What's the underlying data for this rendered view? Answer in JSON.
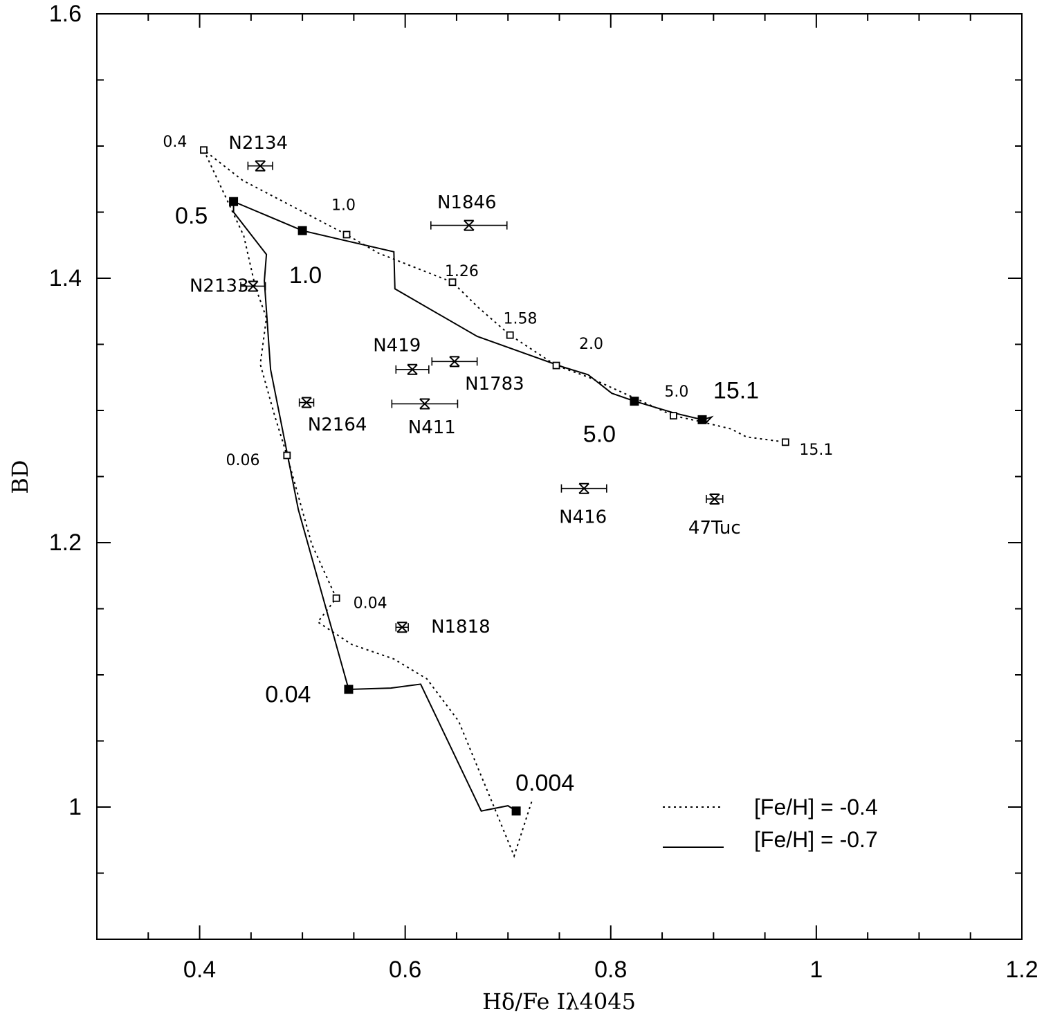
{
  "chart_data": {
    "type": "line",
    "title": "",
    "xlabel": "Hδ/Fe Iλ4045",
    "ylabel": "BD",
    "xlim": [
      0.3,
      1.2
    ],
    "ylim": [
      0.9,
      1.6
    ],
    "xticks": [
      {
        "value": 0.4,
        "label": "0.4"
      },
      {
        "value": 0.6,
        "label": "0.6"
      },
      {
        "value": 0.8,
        "label": "0.8"
      },
      {
        "value": 1.0,
        "label": "1"
      },
      {
        "value": 1.2,
        "label": "1.2"
      }
    ],
    "yticks": [
      {
        "value": 1.0,
        "label": "1"
      },
      {
        "value": 1.2,
        "label": "1.2"
      },
      {
        "value": 1.4,
        "label": "1.4"
      },
      {
        "value": 1.6,
        "label": "1.6"
      }
    ],
    "x_minor_step": 0.05,
    "y_minor_step": 0.05,
    "grid": false,
    "legend_position": "bottom-right",
    "legend": [
      {
        "label": "[Fe/H] = -0.4",
        "style": "dotted"
      },
      {
        "label": "[Fe/H] = -0.7",
        "style": "solid"
      }
    ],
    "series": [
      {
        "name": "[Fe/H] = -0.4",
        "style": "dotted",
        "points": [
          [
            0.723,
            1.004
          ],
          [
            0.706,
            0.963
          ],
          [
            0.687,
            0.999
          ],
          [
            0.652,
            1.065
          ],
          [
            0.621,
            1.097
          ],
          [
            0.589,
            1.112
          ],
          [
            0.548,
            1.123
          ],
          [
            0.515,
            1.14
          ],
          [
            0.533,
            1.158
          ],
          [
            0.509,
            1.199
          ],
          [
            0.485,
            1.266
          ],
          [
            0.473,
            1.296
          ],
          [
            0.459,
            1.335
          ],
          [
            0.465,
            1.37
          ],
          [
            0.454,
            1.394
          ],
          [
            0.443,
            1.432
          ],
          [
            0.404,
            1.497
          ],
          [
            0.442,
            1.474
          ],
          [
            0.543,
            1.433
          ],
          [
            0.574,
            1.419
          ],
          [
            0.646,
            1.397
          ],
          [
            0.671,
            1.378
          ],
          [
            0.702,
            1.357
          ],
          [
            0.747,
            1.334
          ],
          [
            0.779,
            1.325
          ],
          [
            0.861,
            1.296
          ],
          [
            0.885,
            1.292
          ],
          [
            0.917,
            1.286
          ],
          [
            0.932,
            1.28
          ],
          [
            0.97,
            1.276
          ]
        ],
        "markers": [
          [
            0.404,
            1.497
          ],
          [
            0.485,
            1.266
          ],
          [
            0.533,
            1.158
          ],
          [
            0.543,
            1.433
          ],
          [
            0.646,
            1.397
          ],
          [
            0.702,
            1.357
          ],
          [
            0.747,
            1.334
          ],
          [
            0.861,
            1.296
          ],
          [
            0.97,
            1.276
          ]
        ]
      },
      {
        "name": "[Fe/H] = -0.7",
        "style": "solid",
        "points": [
          [
            0.708,
            0.997
          ],
          [
            0.7,
            1.001
          ],
          [
            0.674,
            0.997
          ],
          [
            0.615,
            1.093
          ],
          [
            0.586,
            1.09
          ],
          [
            0.545,
            1.089
          ],
          [
            0.496,
            1.225
          ],
          [
            0.469,
            1.331
          ],
          [
            0.463,
            1.398
          ],
          [
            0.465,
            1.418
          ],
          [
            0.433,
            1.45
          ],
          [
            0.433,
            1.458
          ],
          [
            0.5,
            1.436
          ],
          [
            0.589,
            1.42
          ],
          [
            0.59,
            1.392
          ],
          [
            0.67,
            1.356
          ],
          [
            0.753,
            1.333
          ],
          [
            0.778,
            1.327
          ],
          [
            0.801,
            1.313
          ],
          [
            0.823,
            1.307
          ],
          [
            0.862,
            1.298
          ],
          [
            0.889,
            1.293
          ],
          [
            0.898,
            1.295
          ],
          [
            0.892,
            1.29
          ]
        ],
        "markers": [
          [
            0.433,
            1.458
          ],
          [
            0.5,
            1.436
          ],
          [
            0.545,
            1.089
          ],
          [
            0.708,
            0.997
          ],
          [
            0.823,
            1.307
          ],
          [
            0.889,
            1.293
          ]
        ]
      }
    ],
    "age_labels_large": [
      {
        "text": "0.5",
        "x": 0.392,
        "y": 1.447
      },
      {
        "text": "1.0",
        "x": 0.503,
        "y": 1.402
      },
      {
        "text": "5.0",
        "x": 0.789,
        "y": 1.282
      },
      {
        "text": "15.1",
        "x": 0.922,
        "y": 1.315
      },
      {
        "text": "0.04",
        "x": 0.486,
        "y": 1.085
      },
      {
        "text": "0.004",
        "x": 0.736,
        "y": 1.018
      }
    ],
    "age_labels_small": [
      {
        "text": "0.4",
        "x": 0.376,
        "y": 1.503
      },
      {
        "text": "1.0",
        "x": 0.54,
        "y": 1.455
      },
      {
        "text": "1.26",
        "x": 0.655,
        "y": 1.405
      },
      {
        "text": "1.58",
        "x": 0.712,
        "y": 1.369
      },
      {
        "text": "2.0",
        "x": 0.781,
        "y": 1.35
      },
      {
        "text": "5.0",
        "x": 0.864,
        "y": 1.314
      },
      {
        "text": "15.1",
        "x": 1.0,
        "y": 1.27
      },
      {
        "text": "0.06",
        "x": 0.442,
        "y": 1.262
      },
      {
        "text": "0.04",
        "x": 0.566,
        "y": 1.154
      }
    ],
    "clusters": [
      {
        "name": "N2134",
        "x": 0.459,
        "y": 1.485,
        "err": 0.012,
        "label_x": 0.457,
        "label_y": 1.502
      },
      {
        "name": "N1846",
        "x": 0.662,
        "y": 1.44,
        "err": 0.037,
        "label_x": 0.66,
        "label_y": 1.457
      },
      {
        "name": "N2133",
        "x": 0.452,
        "y": 1.394,
        "err": 0.012,
        "label_x": 0.419,
        "label_y": 1.394
      },
      {
        "name": "N419",
        "x": 0.607,
        "y": 1.331,
        "err": 0.016,
        "label_x": 0.592,
        "label_y": 1.349
      },
      {
        "name": "N1783",
        "x": 0.648,
        "y": 1.337,
        "err": 0.022,
        "label_x": 0.687,
        "label_y": 1.32
      },
      {
        "name": "N2164",
        "x": 0.504,
        "y": 1.306,
        "err": 0.007,
        "label_x": 0.534,
        "label_y": 1.289
      },
      {
        "name": "N411",
        "x": 0.619,
        "y": 1.305,
        "err": 0.032,
        "label_x": 0.626,
        "label_y": 1.287
      },
      {
        "name": "N416",
        "x": 0.774,
        "y": 1.241,
        "err": 0.022,
        "label_x": 0.773,
        "label_y": 1.219
      },
      {
        "name": "47Tuc",
        "x": 0.901,
        "y": 1.233,
        "err": 0.008,
        "label_x": 0.901,
        "label_y": 1.211
      },
      {
        "name": "N1818",
        "x": 0.597,
        "y": 1.136,
        "err": 0.006,
        "label_x": 0.654,
        "label_y": 1.136
      }
    ]
  }
}
